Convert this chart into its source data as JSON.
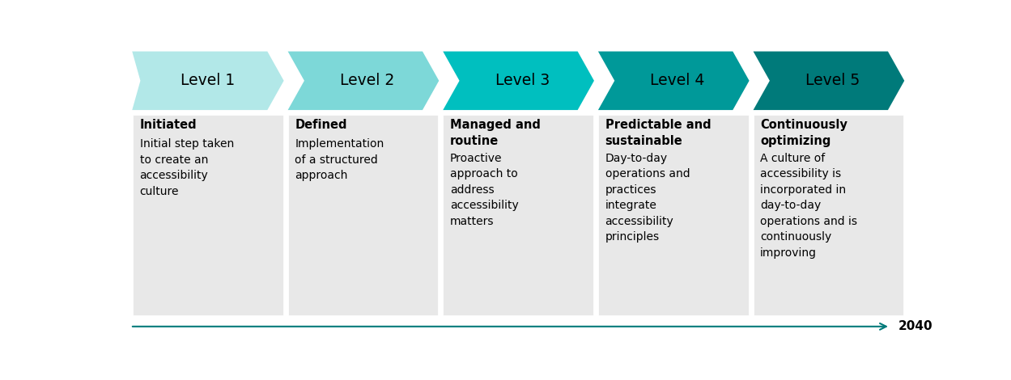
{
  "levels": [
    "Level 1",
    "Level 2",
    "Level 3",
    "Level 4",
    "Level 5"
  ],
  "arrow_colors": [
    "#b2e8e8",
    "#7dd8d8",
    "#00bfbf",
    "#009999",
    "#007a7a"
  ],
  "bold_labels": [
    "Initiated",
    "Defined",
    "Managed and\nroutine",
    "Predictable and\nsustainable",
    "Continuously\noptimizing"
  ],
  "descriptions": [
    "Initial step taken\nto create an\naccessibility\nculture",
    "Implementation\nof a structured\napproach",
    "Proactive\napproach to\naddress\naccessibility\nmatters",
    "Day-to-day\noperations and\npractices\nintegrate\naccessibility\nprinciples",
    "A culture of\naccessibility is\nincorporated in\nday-to-day\noperations and is\ncontinuously\nimproving"
  ],
  "bg_color": "#ffffff",
  "box_bg_color": "#e8e8e8",
  "text_color": "#000000",
  "arrow_text_color": "#000000",
  "timeline_color": "#007a7a",
  "year_label": "2040",
  "figsize": [
    12.49,
    4.7
  ],
  "dpi": 100
}
